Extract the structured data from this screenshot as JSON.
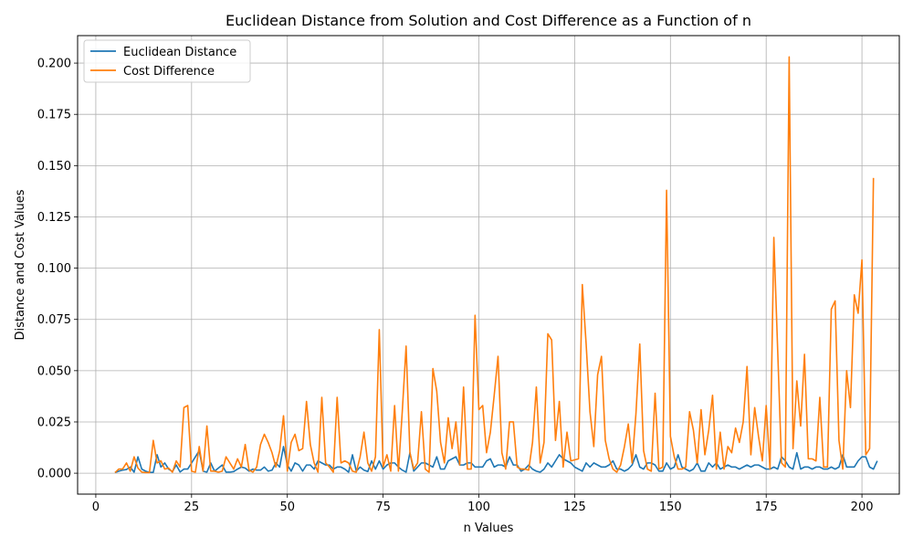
{
  "chart_data": {
    "type": "line",
    "title": "Euclidean Distance from Solution and Cost Difference as a Function of n",
    "xlabel": "n Values",
    "ylabel": "Distance and Cost Values",
    "xlim": [
      -4.75,
      209.75
    ],
    "ylim": [
      -0.0102,
      0.2134
    ],
    "xticks": [
      0,
      25,
      50,
      75,
      100,
      125,
      150,
      175,
      200
    ],
    "xtick_labels": [
      "0",
      "25",
      "50",
      "75",
      "100",
      "125",
      "150",
      "175",
      "200"
    ],
    "yticks": [
      0.0,
      0.025,
      0.05,
      0.075,
      0.1,
      0.125,
      0.15,
      0.175,
      0.2
    ],
    "ytick_labels": [
      "0.000",
      "0.025",
      "0.050",
      "0.075",
      "0.100",
      "0.125",
      "0.150",
      "0.175",
      "0.200"
    ],
    "grid": true,
    "legend_position": "top-left",
    "x_start": 5,
    "x_end": 200,
    "series": [
      {
        "name": "Euclidean Distance",
        "color": "#1f77b4",
        "values": [
          0.0003,
          0.001,
          0.0015,
          0.0018,
          0.003,
          0.0005,
          0.008,
          0.002,
          0.001,
          0.0004,
          0.0004,
          0.009,
          0.003,
          0.005,
          0.002,
          0.0008,
          0.004,
          0.0006,
          0.002,
          0.002,
          0.005,
          0.008,
          0.011,
          0.001,
          0.0005,
          0.005,
          0.001,
          0.0025,
          0.004,
          0.0005,
          0.0005,
          0.0008,
          0.002,
          0.003,
          0.0025,
          0.001,
          0.002,
          0.0015,
          0.0015,
          0.003,
          0.001,
          0.0015,
          0.005,
          0.003,
          0.013,
          0.004,
          0.001,
          0.005,
          0.004,
          0.001,
          0.004,
          0.004,
          0.002,
          0.006,
          0.005,
          0.004,
          0.004,
          0.002,
          0.003,
          0.003,
          0.002,
          0.0005,
          0.009,
          0.001,
          0.003,
          0.0015,
          0.0008,
          0.006,
          0.002,
          0.006,
          0.002,
          0.004,
          0.005,
          0.005,
          0.003,
          0.0015,
          0.0005,
          0.01,
          0.001,
          0.003,
          0.005,
          0.005,
          0.004,
          0.003,
          0.008,
          0.002,
          0.002,
          0.006,
          0.007,
          0.008,
          0.004,
          0.004,
          0.005,
          0.005,
          0.003,
          0.003,
          0.003,
          0.006,
          0.007,
          0.003,
          0.004,
          0.004,
          0.003,
          0.008,
          0.004,
          0.004,
          0.001,
          0.002,
          0.004,
          0.002,
          0.001,
          0.0005,
          0.002,
          0.005,
          0.003,
          0.006,
          0.009,
          0.007,
          0.006,
          0.005,
          0.003,
          0.002,
          0.001,
          0.005,
          0.003,
          0.005,
          0.004,
          0.003,
          0.003,
          0.004,
          0.006,
          0.002,
          0.002,
          0.001,
          0.002,
          0.004,
          0.009,
          0.003,
          0.002,
          0.005,
          0.005,
          0.004,
          0.001,
          0.001,
          0.005,
          0.002,
          0.003,
          0.009,
          0.003,
          0.002,
          0.001,
          0.002,
          0.005,
          0.001,
          0.001,
          0.005,
          0.003,
          0.005,
          0.002,
          0.003,
          0.004,
          0.003,
          0.003,
          0.002,
          0.003,
          0.004,
          0.003,
          0.004,
          0.004,
          0.003,
          0.002,
          0.002,
          0.003,
          0.002,
          0.008,
          0.006,
          0.003,
          0.002,
          0.01,
          0.002,
          0.003,
          0.003,
          0.002,
          0.003,
          0.003,
          0.002,
          0.002,
          0.003,
          0.002,
          0.003,
          0.009,
          0.003,
          0.003,
          0.003,
          0.006,
          0.008,
          0.008,
          0.003,
          0.002,
          0.006
        ]
      },
      {
        "name": "Cost Difference",
        "color": "#ff7f0e",
        "values": [
          0.0003,
          0.002,
          0.002,
          0.005,
          0.001,
          0.008,
          0.0025,
          0.0005,
          0.0003,
          0.0003,
          0.016,
          0.005,
          0.006,
          0.002,
          0.0025,
          0.0005,
          0.006,
          0.003,
          0.032,
          0.033,
          0.001,
          0.0005,
          0.013,
          0.001,
          0.023,
          0.001,
          0.001,
          0.0005,
          0.001,
          0.008,
          0.005,
          0.002,
          0.007,
          0.003,
          0.014,
          0.0015,
          0.0005,
          0.003,
          0.014,
          0.019,
          0.015,
          0.01,
          0.003,
          0.011,
          0.028,
          0.001,
          0.015,
          0.019,
          0.011,
          0.012,
          0.035,
          0.014,
          0.005,
          0.0005,
          0.037,
          0.005,
          0.003,
          0.0005,
          0.037,
          0.005,
          0.006,
          0.005,
          0.001,
          0.0005,
          0.008,
          0.02,
          0.005,
          0.001,
          0.008,
          0.07,
          0.003,
          0.009,
          0.001,
          0.033,
          0.001,
          0.03,
          0.062,
          0.01,
          0.002,
          0.005,
          0.03,
          0.002,
          0.0005,
          0.051,
          0.04,
          0.015,
          0.005,
          0.027,
          0.012,
          0.025,
          0.004,
          0.042,
          0.002,
          0.002,
          0.077,
          0.031,
          0.033,
          0.01,
          0.02,
          0.038,
          0.057,
          0.01,
          0.002,
          0.025,
          0.025,
          0.003,
          0.002,
          0.002,
          0.0015,
          0.015,
          0.042,
          0.005,
          0.015,
          0.068,
          0.065,
          0.016,
          0.035,
          0.003,
          0.02,
          0.006,
          0.0065,
          0.007,
          0.092,
          0.063,
          0.03,
          0.013,
          0.048,
          0.057,
          0.016,
          0.007,
          0.002,
          0.0005,
          0.004,
          0.013,
          0.024,
          0.005,
          0.029,
          0.063,
          0.011,
          0.002,
          0.001,
          0.039,
          0.002,
          0.003,
          0.138,
          0.018,
          0.008,
          0.002,
          0.002,
          0.003,
          0.03,
          0.021,
          0.005,
          0.031,
          0.009,
          0.021,
          0.038,
          0.002,
          0.02,
          0.002,
          0.013,
          0.01,
          0.022,
          0.015,
          0.025,
          0.052,
          0.009,
          0.032,
          0.018,
          0.006,
          0.033,
          0.002,
          0.115,
          0.06,
          0.005,
          0.003,
          0.203,
          0.012,
          0.045,
          0.023,
          0.058,
          0.007,
          0.007,
          0.006,
          0.037,
          0.003,
          0.003,
          0.08,
          0.084,
          0.016,
          0.002,
          0.05,
          0.032,
          0.087,
          0.078,
          0.104,
          0.009,
          0.012,
          0.144
        ]
      }
    ]
  }
}
